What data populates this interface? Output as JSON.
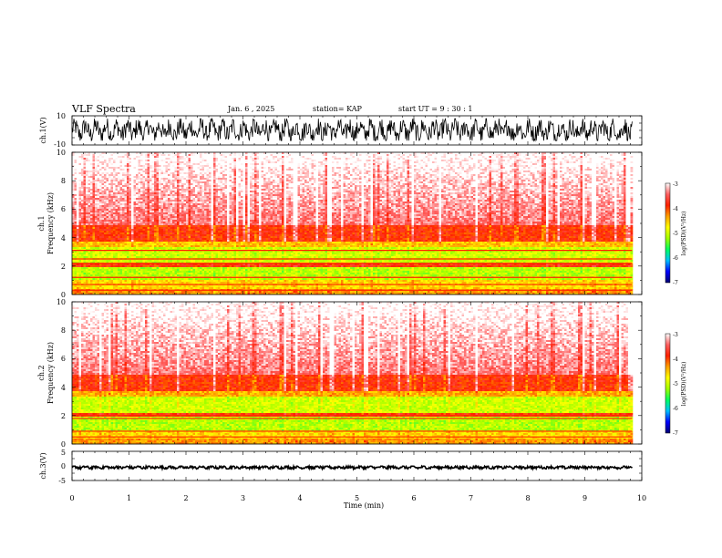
{
  "header": {
    "title": "VLF Spectra",
    "date": "Jan. 6 , 2025",
    "station": "station= KAP",
    "start": "start UT = 9 : 30 : 1"
  },
  "panels": {
    "ch1_wave": {
      "ylabel": "ch.1(V)",
      "ylim": [
        -10,
        10
      ],
      "tick_labels": [
        "10",
        "-10"
      ]
    },
    "ch1_spec": {
      "ylabel_top": "ch.1",
      "ylabel": "Frequency (kHz)",
      "ylim": [
        0,
        10
      ],
      "tick_labels": [
        "0",
        "2",
        "4",
        "6",
        "8",
        "10"
      ]
    },
    "ch2_spec": {
      "ylabel_top": "ch.2",
      "ylabel": "Frequency (kHz)",
      "ylim": [
        0,
        10
      ],
      "tick_labels": [
        "0",
        "2",
        "4",
        "6",
        "8",
        "10"
      ]
    },
    "ch3_wave": {
      "ylabel": "ch.3(V)",
      "ylim": [
        -5,
        5
      ],
      "tick_labels": [
        "5",
        "0",
        "-5"
      ]
    }
  },
  "colorbar": {
    "label": "log(PSD)(V²/Hz)",
    "range": [
      -7,
      -3
    ],
    "tick_labels": [
      "-3",
      "-4",
      "-5",
      "-6",
      "-7"
    ],
    "colors": [
      "#000070",
      "#0000ff",
      "#00c0ff",
      "#00ff60",
      "#a0ff00",
      "#ffff00",
      "#ffa000",
      "#ff2000",
      "#ff6060",
      "#ffffff"
    ]
  },
  "x_axis": {
    "label": "Time (min)",
    "xlim": [
      0,
      10
    ],
    "tick_labels": [
      "0",
      "1",
      "2",
      "3",
      "4",
      "5",
      "6",
      "7",
      "8",
      "9",
      "10"
    ]
  },
  "chart_data": [
    {
      "type": "line",
      "title": "VLF Spectra",
      "ylabel": "ch.1(V)",
      "xlabel": "Time (min)",
      "xlim": [
        0,
        9.83
      ],
      "ylim": [
        -10,
        10
      ],
      "series": [
        {
          "values_range": [
            -7,
            8
          ],
          "mean": 0
        }
      ]
    },
    {
      "type": "heatmap",
      "ylabel": "ch.1 Frequency (kHz)",
      "xlim": [
        0,
        9.83
      ],
      "ylim": [
        0,
        10
      ],
      "zlim": [
        -7,
        -3
      ],
      "bands": [
        {
          "freq_khz": [
            0.0,
            0.5
          ],
          "level": -4.3
        },
        {
          "freq_khz": [
            0.5,
            1.1
          ],
          "level": -4.6
        },
        {
          "freq_khz": [
            1.1,
            2.0
          ],
          "level": -5.1
        },
        {
          "freq_khz": [
            2.0,
            2.3
          ],
          "level": -3.9
        },
        {
          "freq_khz": [
            2.3,
            3.4
          ],
          "level": -5.0
        },
        {
          "freq_khz": [
            3.4,
            3.8
          ],
          "level": -4.5
        },
        {
          "freq_khz": [
            3.8,
            5.0
          ],
          "level": -3.9
        },
        {
          "freq_khz": [
            5.0,
            10.0
          ],
          "level": -3.4
        }
      ],
      "lines_khz": [
        0.3,
        0.7,
        1.2,
        2.2,
        2.5,
        3.1
      ]
    },
    {
      "type": "heatmap",
      "ylabel": "ch.2 Frequency (kHz)",
      "xlim": [
        0,
        9.83
      ],
      "ylim": [
        0,
        10
      ],
      "zlim": [
        -7,
        -3
      ],
      "bands": [
        {
          "freq_khz": [
            0.0,
            0.5
          ],
          "level": -4.3
        },
        {
          "freq_khz": [
            0.5,
            1.0
          ],
          "level": -4.6
        },
        {
          "freq_khz": [
            1.0,
            2.0
          ],
          "level": -5.1
        },
        {
          "freq_khz": [
            2.0,
            2.2
          ],
          "level": -3.9
        },
        {
          "freq_khz": [
            2.2,
            3.4
          ],
          "level": -5.0
        },
        {
          "freq_khz": [
            3.4,
            3.8
          ],
          "level": -4.4
        },
        {
          "freq_khz": [
            3.8,
            5.0
          ],
          "level": -3.9
        },
        {
          "freq_khz": [
            5.0,
            10.0
          ],
          "level": -3.4
        }
      ],
      "lines_khz": [
        0.5,
        0.9,
        1.8,
        2.0
      ]
    },
    {
      "type": "line",
      "ylabel": "ch.3(V)",
      "xlabel": "Time (min)",
      "xlim": [
        0,
        9.83
      ],
      "ylim": [
        -5,
        5
      ],
      "series": [
        {
          "values_range": [
            -1.0,
            -0.1
          ],
          "mean": -0.5
        }
      ]
    }
  ]
}
